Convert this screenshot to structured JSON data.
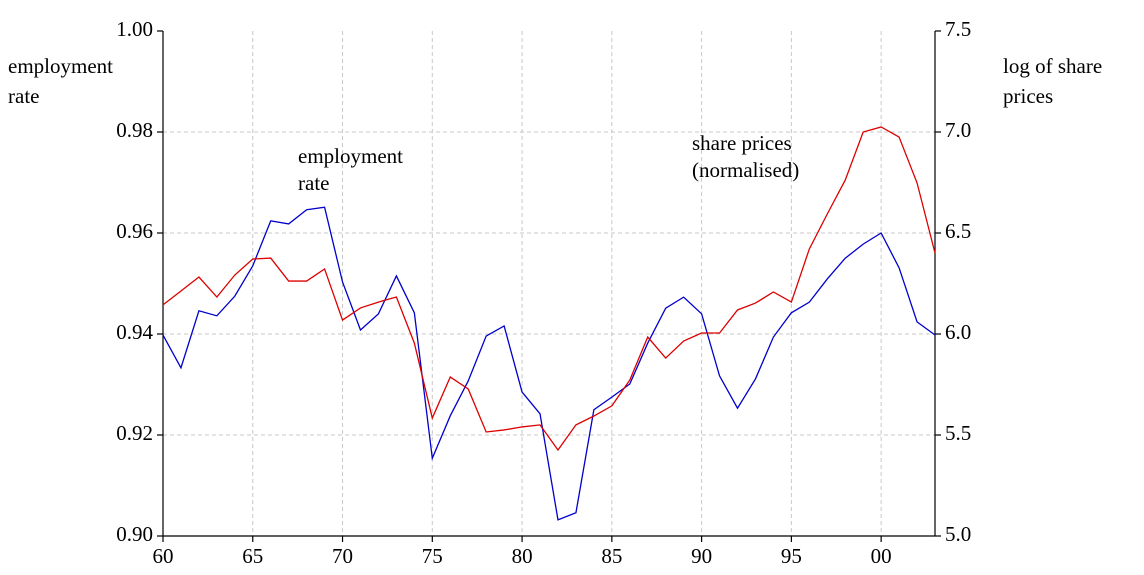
{
  "chart_data": {
    "type": "line",
    "y_label": [
      "employment",
      "rate"
    ],
    "y2_label": [
      "log of share",
      "prices"
    ],
    "annotations": [
      {
        "lines": [
          "employment",
          "rate"
        ]
      },
      {
        "lines": [
          "share prices",
          "(normalised)"
        ]
      }
    ],
    "x": [
      1960,
      1961,
      1962,
      1963,
      1964,
      1965,
      1966,
      1967,
      1968,
      1969,
      1970,
      1971,
      1972,
      1973,
      1974,
      1975,
      1976,
      1977,
      1978,
      1979,
      1980,
      1981,
      1982,
      1983,
      1984,
      1985,
      1986,
      1987,
      1988,
      1989,
      1990,
      1991,
      1992,
      1993,
      1994,
      1995,
      1996,
      1997,
      1998,
      1999,
      2000,
      2001,
      2002,
      2003
    ],
    "xlim": [
      1960,
      2003
    ],
    "xticks": [
      {
        "value": 1960,
        "label": "60"
      },
      {
        "value": 1965,
        "label": "65"
      },
      {
        "value": 1970,
        "label": "70"
      },
      {
        "value": 1975,
        "label": "75"
      },
      {
        "value": 1980,
        "label": "80"
      },
      {
        "value": 1985,
        "label": "85"
      },
      {
        "value": 1990,
        "label": "90"
      },
      {
        "value": 1995,
        "label": "95"
      },
      {
        "value": 2000,
        "label": "00"
      }
    ],
    "ylim": [
      0.9,
      1.0
    ],
    "yticks": [
      {
        "value": 0.9,
        "label": "0.90"
      },
      0.92,
      0.94,
      0.96,
      0.98,
      {
        "value": 1.0,
        "label": "1.00"
      }
    ],
    "y2lim": [
      5.0,
      7.5
    ],
    "y2ticks": [
      {
        "value": 5,
        "label": "5.0"
      },
      5.5,
      {
        "value": 6,
        "label": "6.0"
      },
      6.5,
      {
        "value": 7,
        "label": "7.0"
      },
      7.5
    ],
    "grid": true,
    "series": [
      {
        "color": "#0000cc",
        "axis": "y",
        "values": [
          0.9398,
          0.9333,
          0.9446,
          0.9436,
          0.9475,
          0.9535,
          0.9624,
          0.9618,
          0.9646,
          0.9651,
          0.9503,
          0.9408,
          0.944,
          0.9515,
          0.9442,
          0.9154,
          0.9238,
          0.9307,
          0.9396,
          0.9416,
          0.9285,
          0.9242,
          0.9032,
          0.9046,
          0.925,
          0.9275,
          0.9301,
          0.9382,
          0.9451,
          0.9473,
          0.944,
          0.9317,
          0.9253,
          0.9311,
          0.9394,
          0.9442,
          0.9463,
          0.9509,
          0.955,
          0.9578,
          0.96,
          0.9531,
          0.9424,
          0.9398
        ]
      },
      {
        "color": "#dd0000",
        "axis": "y2",
        "values": [
          6.144,
          6.213,
          6.282,
          6.183,
          6.292,
          6.371,
          6.376,
          6.262,
          6.262,
          6.322,
          6.069,
          6.129,
          6.158,
          6.183,
          5.955,
          5.584,
          5.787,
          5.728,
          5.515,
          5.525,
          5.54,
          5.55,
          5.426,
          5.55,
          5.594,
          5.644,
          5.772,
          5.985,
          5.881,
          5.965,
          6.005,
          6.005,
          6.119,
          6.153,
          6.208,
          6.158,
          6.421,
          6.594,
          6.762,
          7.0,
          7.025,
          6.975,
          6.748,
          6.401
        ]
      }
    ]
  }
}
